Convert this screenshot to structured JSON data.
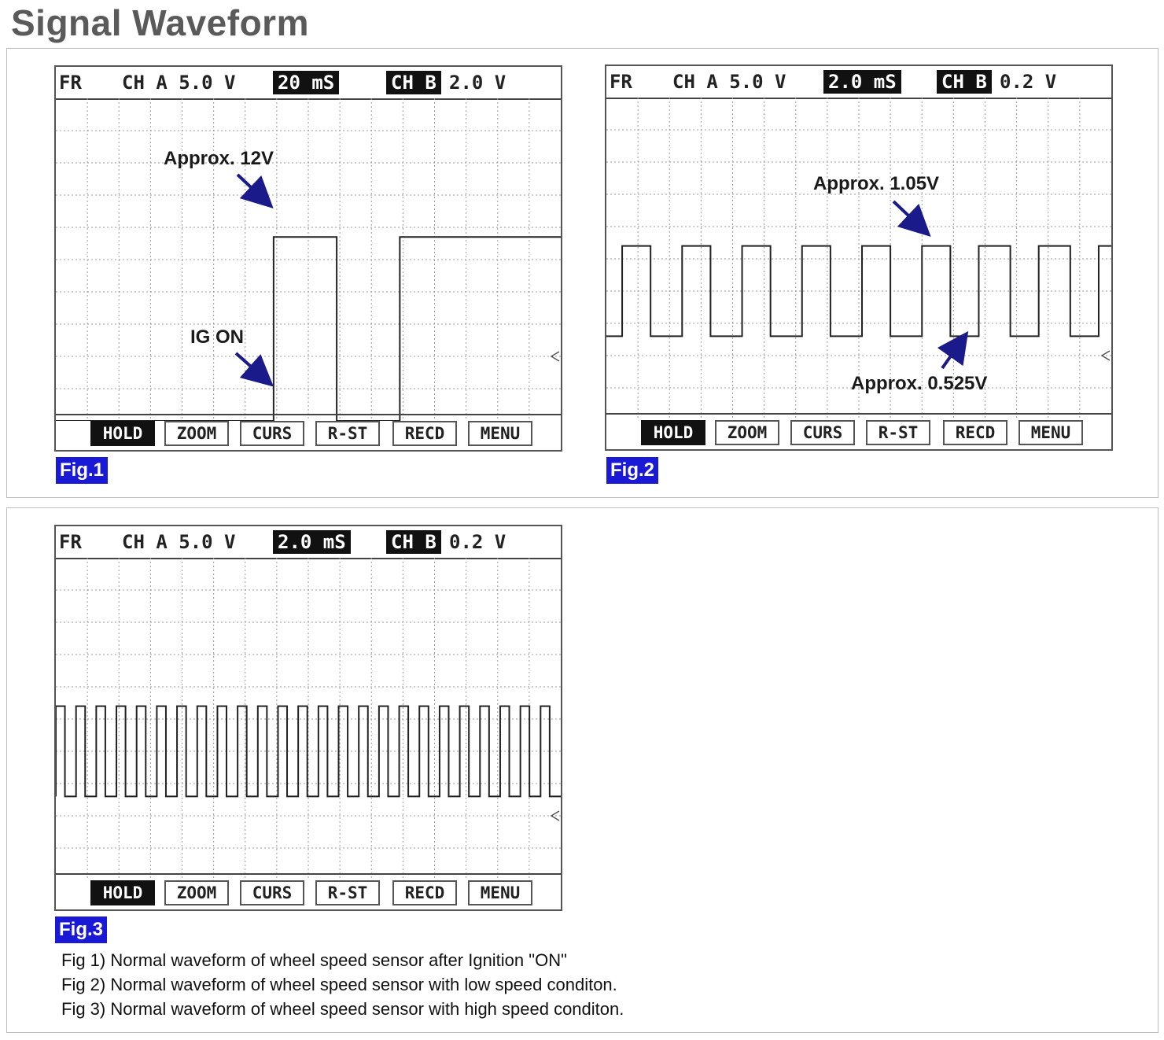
{
  "title": "Signal Waveform",
  "scope_buttons": [
    "HOLD",
    "ZOOM",
    "CURS",
    "R-ST",
    "RECD",
    "MENU"
  ],
  "figures": [
    {
      "tag": "Fig.1",
      "header": {
        "fr": "FR",
        "cha": "CH A 5.0 V",
        "time": "20 mS",
        "chb_label": "CH B",
        "chb_val": "2.0 V"
      },
      "annotations": [
        "Approx. 12V",
        "IG ON"
      ]
    },
    {
      "tag": "Fig.2",
      "header": {
        "fr": "FR",
        "cha": "CH A 5.0 V",
        "time": "2.0 mS",
        "chb_label": "CH B",
        "chb_val": "0.2 V"
      },
      "annotations": [
        "Approx. 1.05V",
        "Approx. 0.525V"
      ]
    },
    {
      "tag": "Fig.3",
      "header": {
        "fr": "FR",
        "cha": "CH A 5.0 V",
        "time": "2.0 mS",
        "chb_label": "CH B",
        "chb_val": "0.2 V"
      },
      "annotations": []
    }
  ],
  "captions": [
    "Fig 1) Normal waveform of wheel speed sensor after Ignition \"ON\"",
    "Fig 2) Normal waveform of wheel speed sensor with low speed conditon.",
    "Fig 3) Normal waveform of wheel speed sensor with high speed conditon."
  ],
  "chart_data": [
    {
      "type": "line",
      "grid": true,
      "x_divisions": 16,
      "y_divisions": 10,
      "series": [
        {
          "x": [
            0,
            6.9,
            6.9,
            8.9,
            8.9,
            10.9,
            10.9,
            16
          ],
          "y": [
            0,
            0,
            5.7,
            5.7,
            0,
            0,
            5.7,
            5.7
          ]
        }
      ]
    },
    {
      "type": "line",
      "grid": true,
      "x_divisions": 16,
      "y_divisions": 10,
      "series": [
        {
          "x": [
            0,
            0.5,
            0.5,
            1.4,
            1.4,
            2.4,
            2.4,
            3.3,
            3.3,
            4.3,
            4.3,
            5.2,
            5.2,
            6.2,
            6.2,
            7.1,
            7.1,
            8.1,
            8.1,
            9.0,
            9.0,
            10.0,
            10.0,
            10.9,
            10.9,
            11.8,
            11.8,
            12.8,
            12.8,
            13.7,
            13.7,
            14.7,
            14.7,
            15.6,
            15.6,
            16
          ],
          "y": [
            2.6,
            2.6,
            5.4,
            5.4,
            2.6,
            2.6,
            5.4,
            5.4,
            2.6,
            2.6,
            5.4,
            5.4,
            2.6,
            2.6,
            5.4,
            5.4,
            2.6,
            2.6,
            5.4,
            5.4,
            2.6,
            2.6,
            5.4,
            5.4,
            2.6,
            2.6,
            5.4,
            5.4,
            2.6,
            2.6,
            5.4,
            5.4,
            2.6,
            2.6,
            5.4,
            5.4
          ]
        }
      ]
    },
    {
      "type": "line",
      "grid": true,
      "x_divisions": 16,
      "y_divisions": 10,
      "pulse_high": 5.4,
      "pulse_low": 2.6,
      "cycles": 25,
      "series": [
        {
          "x_range": [
            0,
            16
          ],
          "y": [
            2.6,
            5.4
          ]
        }
      ]
    }
  ]
}
